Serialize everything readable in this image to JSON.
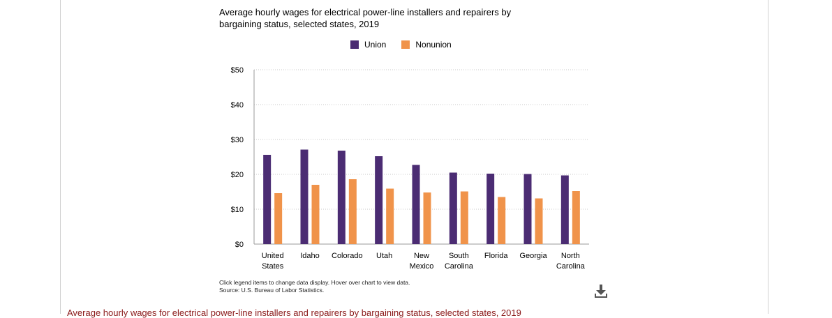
{
  "title": "Average hourly wages for electrical power-line installers and repairers by bargaining status, selected states, 2019",
  "legend": {
    "union": "Union",
    "nonunion": "Nonunion"
  },
  "colors": {
    "union": "#4b2c73",
    "nonunion": "#f0934a"
  },
  "notes": {
    "line1": "Click legend items to change data display. Hover over chart to view data.",
    "line2": "Source: U.S. Bureau of Labor Statistics."
  },
  "caption": "Average hourly wages for electrical power-line installers and repairers by bargaining status, selected states, 2019",
  "download_icon": "download-icon",
  "chart_data": {
    "type": "bar",
    "title": "Average hourly wages for electrical power-line installers and repairers by bargaining status, selected states, 2019",
    "categories": [
      [
        "United",
        "States"
      ],
      [
        "Idaho"
      ],
      [
        "Colorado"
      ],
      [
        "Utah"
      ],
      [
        "New",
        "Mexico"
      ],
      [
        "South",
        "Carolina"
      ],
      [
        "Florida"
      ],
      [
        "Georgia"
      ],
      [
        "North",
        "Carolina"
      ]
    ],
    "series": [
      {
        "name": "Union",
        "values": [
          25.6,
          27.1,
          26.8,
          25.2,
          22.7,
          20.5,
          20.2,
          20.1,
          19.7
        ]
      },
      {
        "name": "Nonunion",
        "values": [
          14.6,
          17.0,
          18.6,
          15.9,
          14.8,
          15.1,
          13.5,
          13.1,
          15.2
        ]
      }
    ],
    "yticks": [
      "$0",
      "$10",
      "$20",
      "$30",
      "$40",
      "$50"
    ],
    "ylim": [
      0,
      50
    ],
    "grid": true,
    "legend_position": "top"
  }
}
